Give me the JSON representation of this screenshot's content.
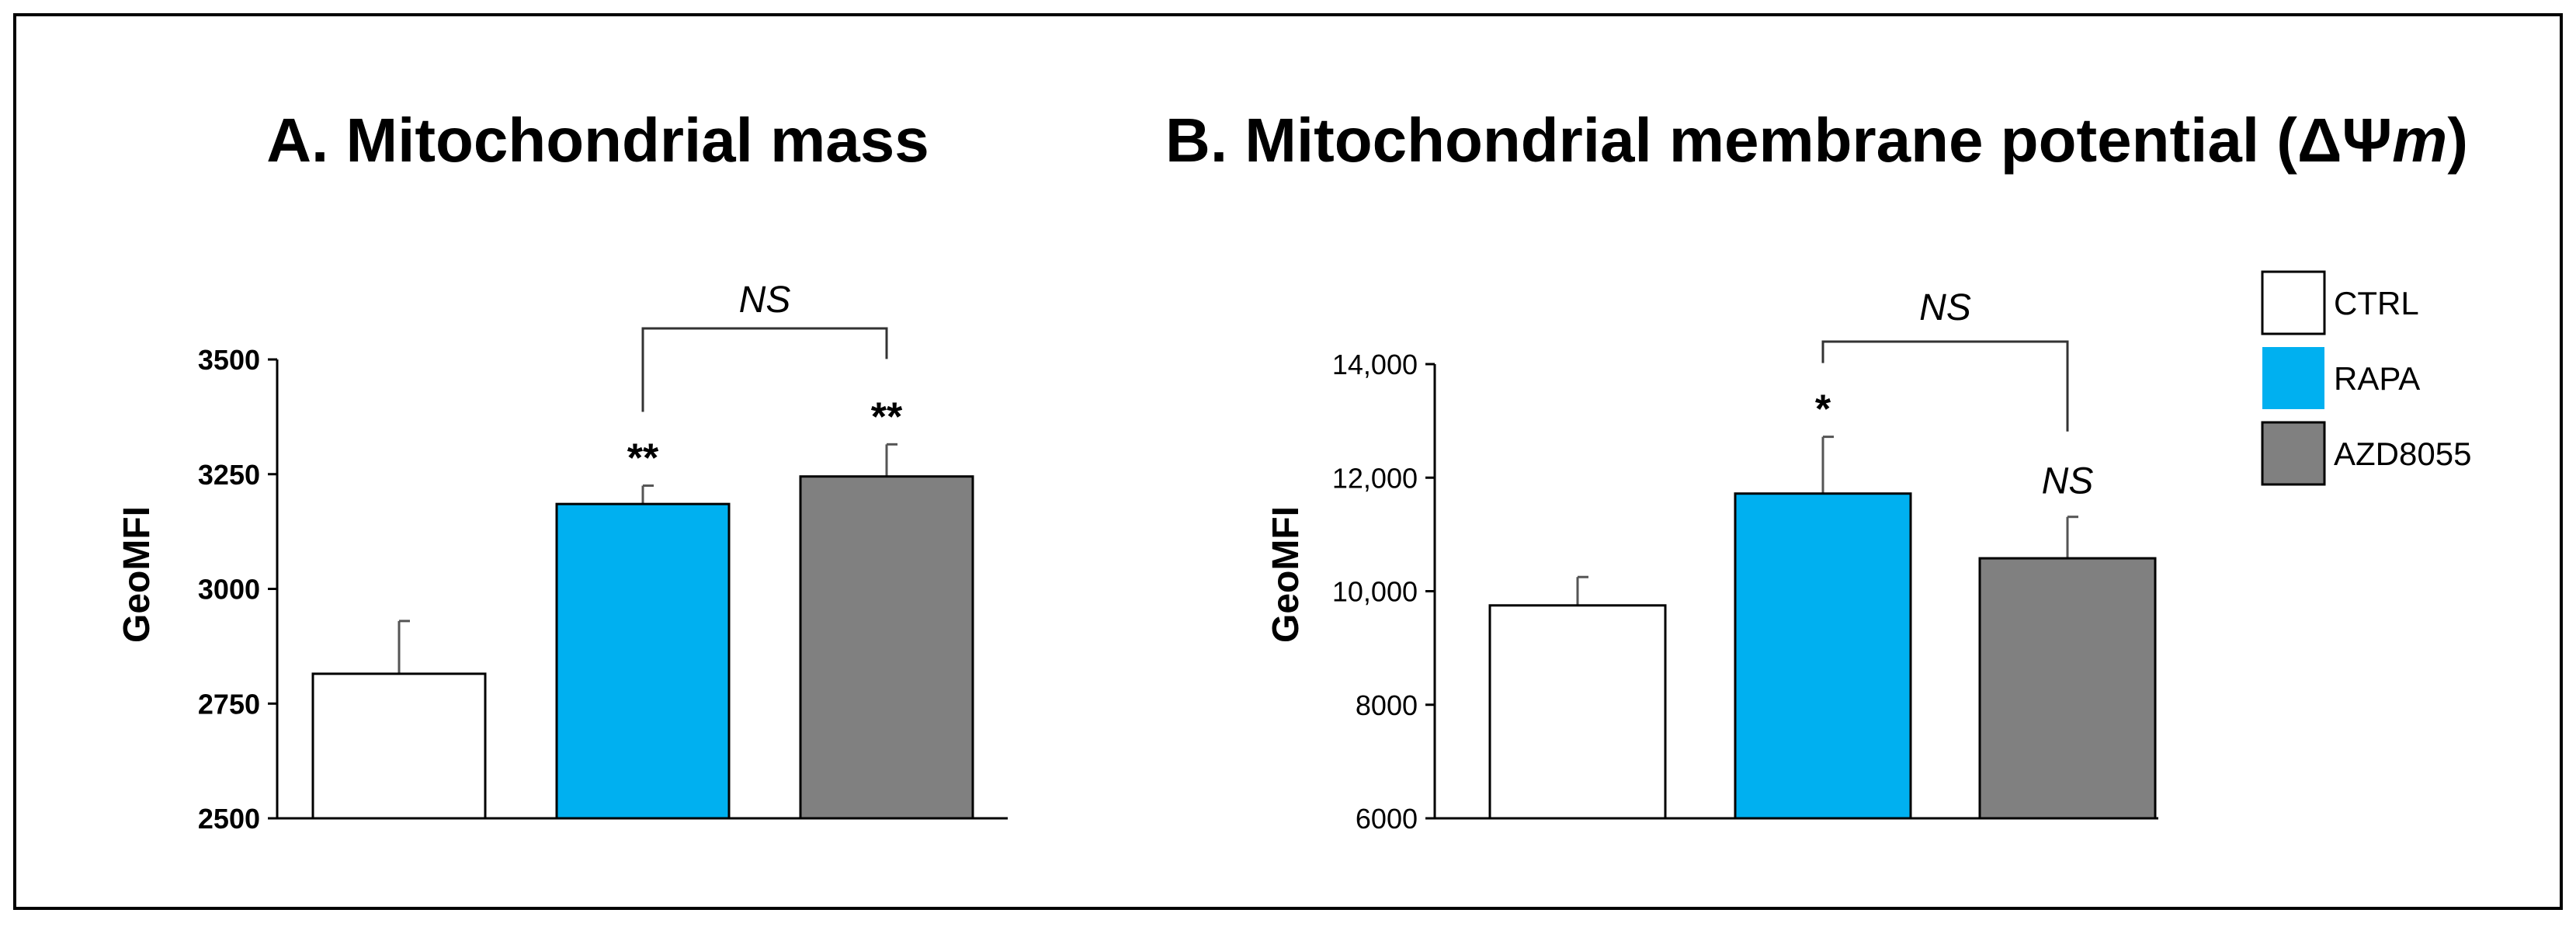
{
  "colors": {
    "ctrl": "#ffffff",
    "rapa": "#00b0f0",
    "azd": "#808080",
    "stroke": "#000000",
    "error": "#555555",
    "bracket": "#333333"
  },
  "legend": {
    "items": [
      {
        "label": "CTRL",
        "color": "#ffffff"
      },
      {
        "label": "RAPA",
        "color": "#00b0f0"
      },
      {
        "label": "AZD8055",
        "color": "#808080"
      }
    ]
  },
  "chart_data": [
    {
      "type": "bar",
      "title": "A. Mitochondrial mass",
      "xlabel": "",
      "ylabel": "GeoMFI",
      "ylim": [
        2500,
        3500
      ],
      "yticks": [
        2500,
        2750,
        3000,
        3250,
        3500
      ],
      "ytick_labels": [
        "2500",
        "2750",
        "3000",
        "3250",
        "3500"
      ],
      "categories": [
        "CTRL",
        "RAPA",
        "AZD8055"
      ],
      "values": [
        2815,
        3185,
        3245
      ],
      "errors": [
        115,
        40,
        70
      ],
      "colors": [
        "#ffffff",
        "#00b0f0",
        "#808080"
      ],
      "significance": [
        "",
        "**",
        "**"
      ],
      "bracket": {
        "from": 1,
        "to": 2,
        "label": "NS"
      }
    },
    {
      "type": "bar",
      "title": "B. Mitochondrial membrane potential (ΔΨm)",
      "xlabel": "",
      "ylabel": "GeoMFI",
      "ylim": [
        6000,
        14000
      ],
      "yticks": [
        6000,
        8000,
        10000,
        12000,
        14000
      ],
      "ytick_labels": [
        "6000",
        "8000",
        "10,000",
        "12,000",
        "14,000"
      ],
      "categories": [
        "CTRL",
        "RAPA",
        "AZD8055"
      ],
      "values": [
        9750,
        11720,
        10580
      ],
      "errors": [
        500,
        1000,
        730
      ],
      "colors": [
        "#ffffff",
        "#00b0f0",
        "#808080"
      ],
      "significance": [
        "",
        "*",
        "NS"
      ],
      "bracket": {
        "from": 1,
        "to": 2,
        "label": "NS"
      }
    }
  ]
}
